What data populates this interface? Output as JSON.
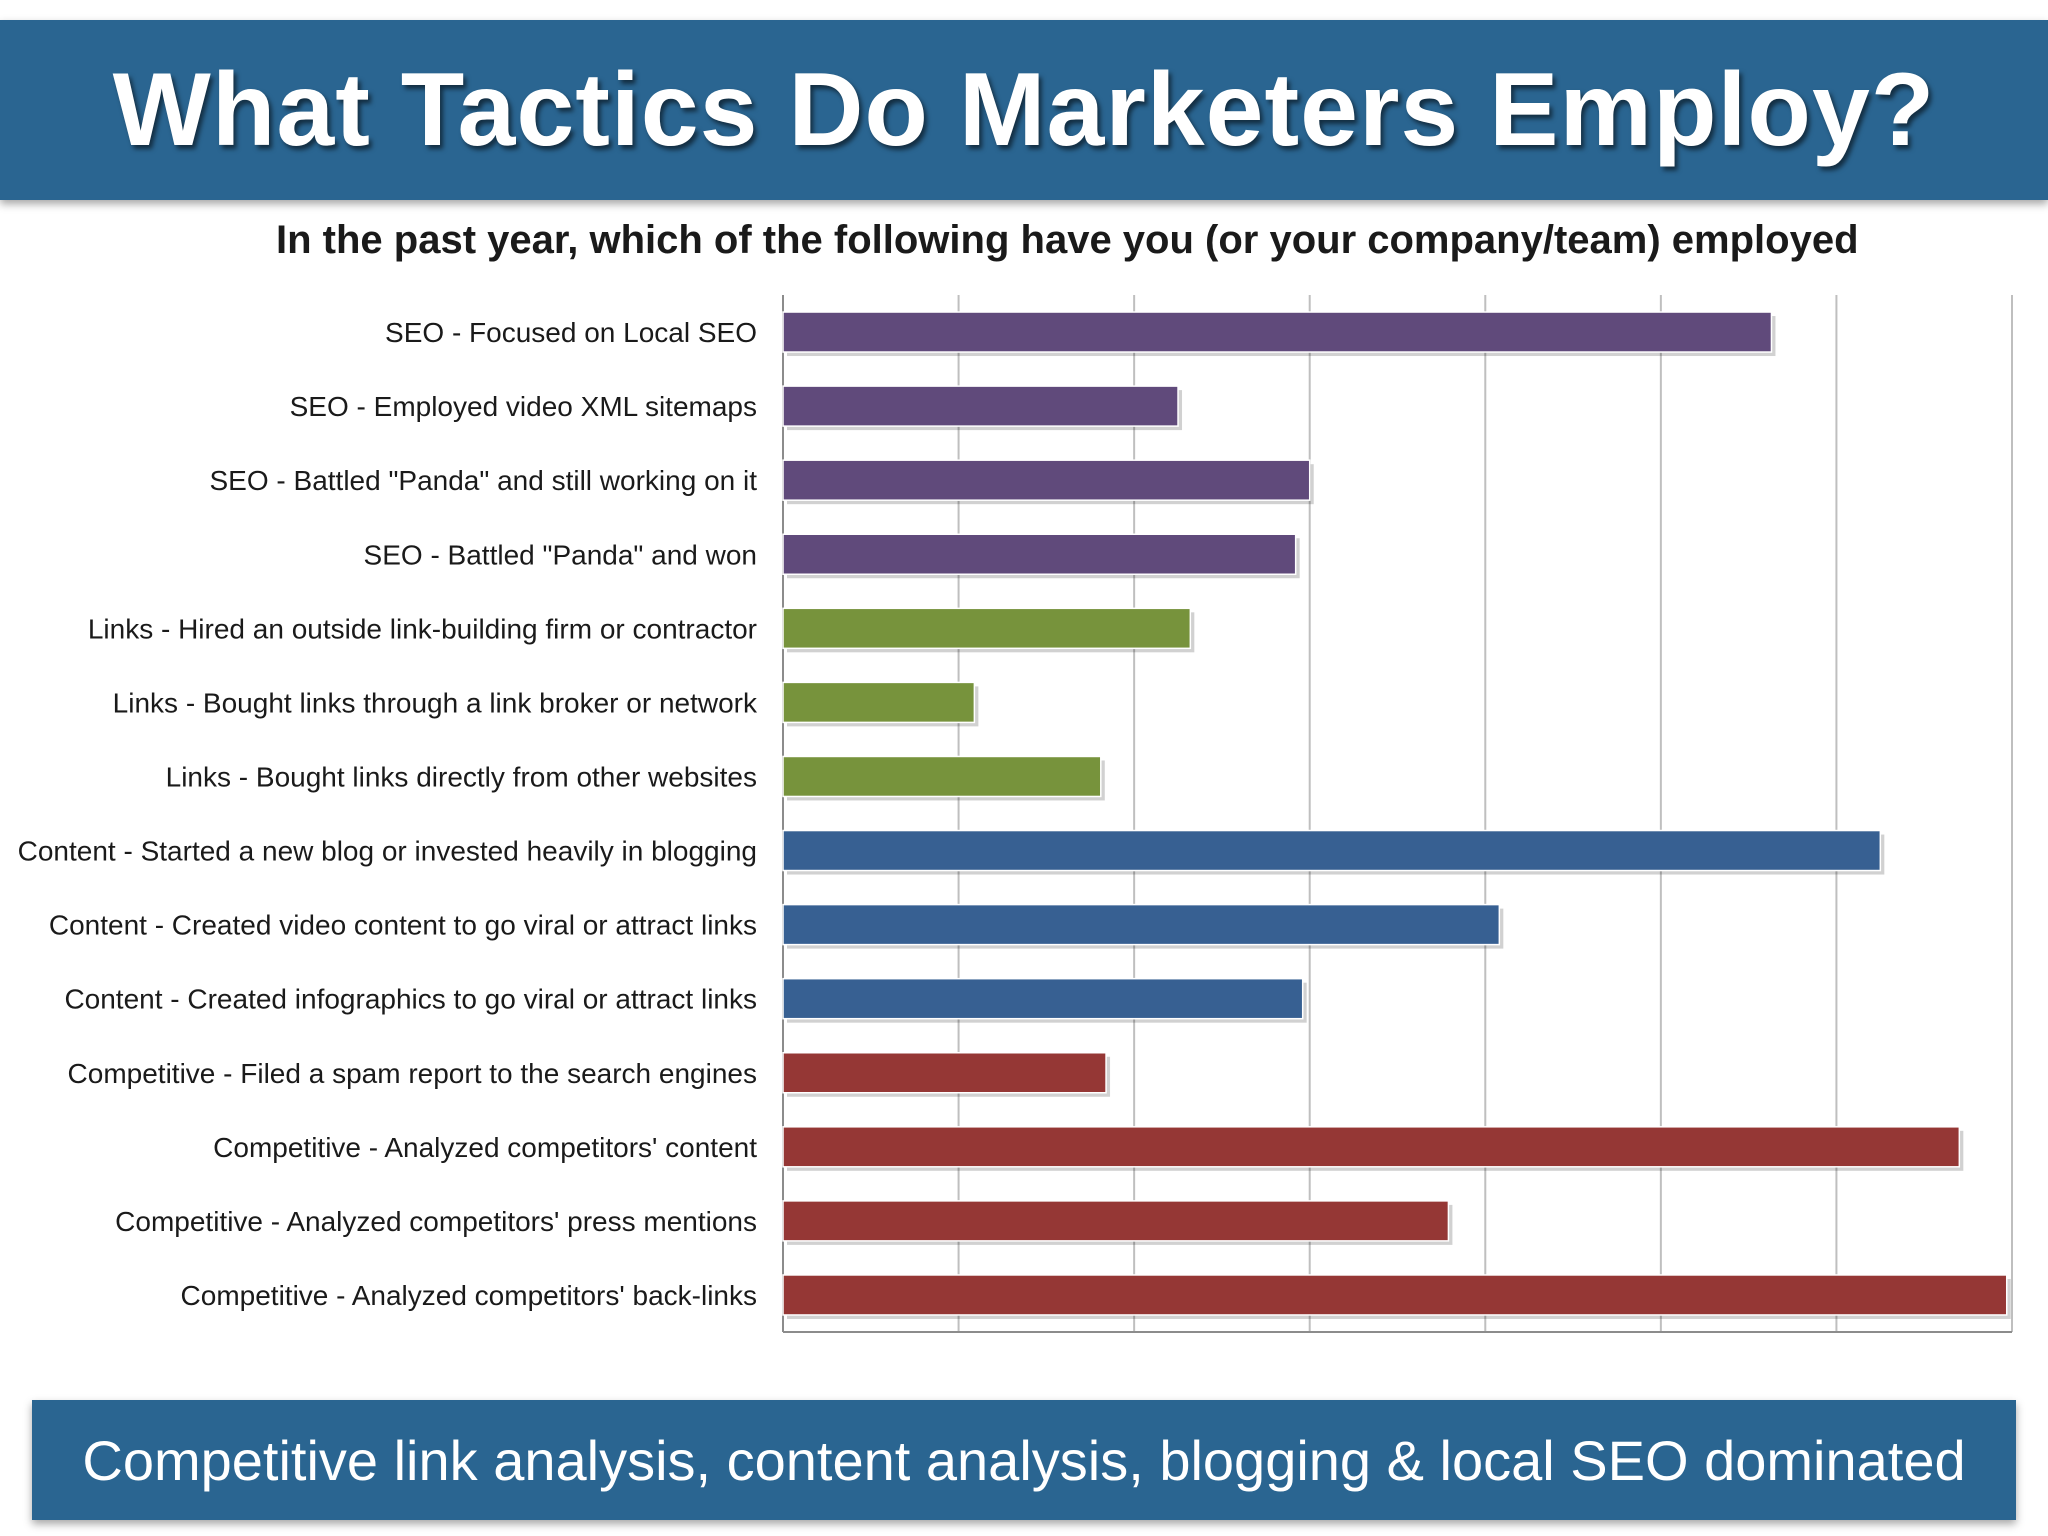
{
  "slide": {
    "title": "What Tactics Do Marketers Employ?",
    "footer": "Competitive link analysis, content analysis, blogging & local SEO dominated"
  },
  "colors": {
    "banner": "#2a6591",
    "seo": "#604a7b",
    "links": "#77933c",
    "content": "#376092",
    "competitive": "#953735"
  },
  "chart_data": {
    "type": "bar",
    "orientation": "horizontal",
    "title": "In the past year, which of the following have you (or your company/team) employed",
    "xlabel": "",
    "ylabel": "",
    "xlim": [
      0,
      70
    ],
    "grid": true,
    "legend": "none",
    "ticks": [
      "0%",
      "10%",
      "20%",
      "30%",
      "40%",
      "50%",
      "60%",
      "70%"
    ],
    "categories": [
      "SEO - Focused on Local SEO",
      "SEO - Employed video XML sitemaps",
      "SEO - Battled \"Panda\" and still working on it",
      "SEO - Battled \"Panda\" and won",
      "Links - Hired an outside link-building firm or contractor",
      "Links - Bought links through a link broker or network",
      "Links - Bought links directly from other websites",
      "Content - Started a new blog or invested heavily in blogging",
      "Content - Created video content to go viral or attract links",
      "Content - Created infographics to go viral or attract links",
      "Competitive - Filed a spam report to the search engines",
      "Competitive - Analyzed competitors' content",
      "Competitive - Analyzed competitors' press mentions",
      "Competitive - Analyzed competitors' back-links"
    ],
    "values": [
      56.3,
      22.5,
      30.0,
      29.2,
      23.2,
      10.9,
      18.1,
      62.5,
      40.8,
      29.6,
      18.4,
      67.0,
      37.9,
      69.7
    ],
    "groups": [
      "seo",
      "seo",
      "seo",
      "seo",
      "links",
      "links",
      "links",
      "content",
      "content",
      "content",
      "competitive",
      "competitive",
      "competitive",
      "competitive"
    ]
  }
}
